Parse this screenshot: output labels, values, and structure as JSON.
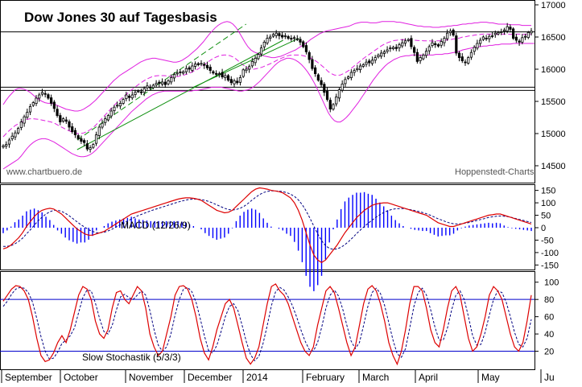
{
  "chart_data": [
    {
      "type": "candlestick",
      "title": "Dow Jones 30 auf Tagesbasis",
      "watermark_left": "www.chartbuero.de",
      "watermark_right": "Hoppenstedt-Charts",
      "ylim": [
        14250,
        17050
      ],
      "yticks": [
        "14500",
        "15000",
        "15500",
        "16000",
        "16500",
        "17000"
      ],
      "close_series": [
        14810,
        14830,
        14900,
        14960,
        15010,
        15080,
        15180,
        15260,
        15330,
        15420,
        15480,
        15550,
        15600,
        15640,
        15610,
        15550,
        15470,
        15390,
        15280,
        15180,
        15230,
        15190,
        15100,
        15030,
        14980,
        14920,
        14880,
        14860,
        14760,
        14780,
        14830,
        14980,
        15100,
        15160,
        15230,
        15280,
        15350,
        15410,
        15440,
        15470,
        15530,
        15600,
        15560,
        15600,
        15640,
        15660,
        15640,
        15700,
        15740,
        15720,
        15750,
        15780,
        15780,
        15800,
        15760,
        15820,
        15870,
        15920,
        15940,
        15950,
        15960,
        16010,
        16000,
        16050,
        16080,
        16070,
        16090,
        16060,
        16020,
        15980,
        15940,
        15920,
        15930,
        15880,
        15900,
        15830,
        15790,
        15820,
        15790,
        15870,
        15990,
        16000,
        16040,
        16120,
        16170,
        16230,
        16330,
        16420,
        16480,
        16500,
        16540,
        16560,
        16520,
        16500,
        16520,
        16480,
        16470,
        16490,
        16470,
        16420,
        16350,
        16270,
        16150,
        16010,
        15930,
        15830,
        15760,
        15640,
        15530,
        15380,
        15450,
        15570,
        15680,
        15770,
        15840,
        15880,
        15950,
        15980,
        16010,
        16050,
        16070,
        16110,
        16100,
        16140,
        16180,
        16220,
        16250,
        16270,
        16300,
        16330,
        16340,
        16320,
        16380,
        16410,
        16440,
        16460,
        16350,
        16260,
        16120,
        16180,
        16220,
        16280,
        16350,
        16410,
        16380,
        16360,
        16430,
        16480,
        16560,
        16590,
        16530,
        16250,
        16180,
        16130,
        16100,
        16180,
        16260,
        16340,
        16400,
        16450,
        16500,
        16480,
        16510,
        16520,
        16560,
        16570,
        16580,
        16610,
        16660,
        16620,
        16480,
        16450,
        16420,
        16490,
        16510,
        16570,
        16590
      ],
      "band_upper": [
        15450,
        15520,
        15580,
        15630,
        15680,
        15700,
        15700,
        15690,
        15670,
        15640,
        15600,
        15560,
        15530,
        15500,
        15480,
        15470,
        15470,
        15460,
        15440,
        15420,
        15400,
        15380,
        15370,
        15360,
        15350,
        15350,
        15360,
        15380,
        15410,
        15440,
        15480,
        15520,
        15570,
        15620,
        15670,
        15720,
        15770,
        15820,
        15860,
        15900,
        15930,
        15960,
        15990,
        16020,
        16050,
        16080,
        16110,
        16130,
        16150,
        16160,
        16170,
        16170,
        16160,
        16150,
        16140,
        16130,
        16120,
        16110,
        16110,
        16120,
        16140,
        16170,
        16200,
        16240,
        16280,
        16320,
        16370,
        16420,
        16480,
        16540,
        16590,
        16640,
        16680,
        16710,
        16730,
        16740,
        16730,
        16700,
        16650,
        16580,
        16500,
        16420,
        16350,
        16300,
        16270,
        16250,
        16230,
        16210,
        16200,
        16190,
        16180,
        16180,
        16190,
        16200,
        16220,
        16240,
        16260,
        16280,
        16300,
        16330,
        16360,
        16390,
        16420,
        16460,
        16490,
        16520,
        16550,
        16570,
        16590,
        16600,
        16610,
        16620,
        16630,
        16640,
        16650,
        16660,
        16670,
        16690,
        16710,
        16720,
        16730,
        16730,
        16730,
        16720,
        16720,
        16720,
        16730,
        16740,
        16740,
        16740,
        16740,
        16740,
        16730,
        16730,
        16720,
        16710,
        16700,
        16690,
        16680,
        16670,
        16670,
        16660,
        16660,
        16660,
        16650,
        16650,
        16650,
        16660,
        16660,
        16670,
        16670,
        16680,
        16680,
        16690,
        16700,
        16700,
        16710,
        16710,
        16720,
        16720,
        16730,
        16730,
        16730,
        16720,
        16720,
        16710,
        16700,
        16700,
        16700,
        16700,
        16690,
        16690,
        16690,
        16690,
        16680,
        16680,
        16680,
        16680
      ],
      "band_lower": [
        14450,
        14480,
        14510,
        14540,
        14570,
        14600,
        14650,
        14710,
        14770,
        14820,
        14860,
        14890,
        14910,
        14920,
        14920,
        14910,
        14890,
        14870,
        14840,
        14810,
        14780,
        14750,
        14720,
        14690,
        14670,
        14650,
        14640,
        14640,
        14650,
        14670,
        14700,
        14740,
        14790,
        14840,
        14890,
        14940,
        14990,
        15040,
        15090,
        15140,
        15190,
        15240,
        15290,
        15340,
        15380,
        15420,
        15460,
        15500,
        15540,
        15570,
        15600,
        15620,
        15640,
        15650,
        15660,
        15660,
        15660,
        15660,
        15660,
        15660,
        15660,
        15660,
        15660,
        15660,
        15670,
        15670,
        15680,
        15690,
        15700,
        15710,
        15720,
        15720,
        15720,
        15720,
        15710,
        15700,
        15690,
        15680,
        15670,
        15660,
        15660,
        15670,
        15680,
        15700,
        15730,
        15770,
        15810,
        15860,
        15910,
        15960,
        16010,
        16060,
        16100,
        16130,
        16150,
        16170,
        16170,
        16160,
        16140,
        16110,
        16070,
        16020,
        15960,
        15890,
        15810,
        15720,
        15620,
        15520,
        15420,
        15320,
        15250,
        15200,
        15180,
        15180,
        15210,
        15250,
        15300,
        15360,
        15420,
        15480,
        15550,
        15620,
        15690,
        15760,
        15830,
        15890,
        15950,
        16000,
        16050,
        16090,
        16120,
        16150,
        16170,
        16190,
        16200,
        16210,
        16210,
        16220,
        16220,
        16220,
        16220,
        16220,
        16220,
        16220,
        16220,
        16230,
        16230,
        16230,
        16240,
        16240,
        16250,
        16260,
        16270,
        16280,
        16300,
        16310,
        16320,
        16330,
        16340,
        16350,
        16350,
        16360,
        16360,
        16370,
        16370,
        16380,
        16380,
        16390,
        16390,
        16390,
        16390,
        16400,
        16400,
        16400,
        16400,
        16400,
        16400,
        16400,
        16400
      ],
      "horizontal_lines": [
        16580,
        15720,
        15670
      ],
      "trendlines": [
        {
          "color": "#109010",
          "dash": true,
          "from": [
            0,
            14760
          ],
          "to": [
            100,
            16720
          ]
        },
        {
          "color": "#109010",
          "dash": false,
          "from": [
            0,
            14700
          ],
          "to": [
            100,
            16350
          ]
        },
        {
          "color": "#109010",
          "dash": false,
          "from": [
            0,
            15770
          ],
          "to": [
            100,
            16600
          ]
        }
      ]
    },
    {
      "type": "line",
      "label": "MACD (12/26/9)",
      "yticks": [
        "150",
        "100",
        "50",
        "0",
        "-50",
        "-100",
        "-150"
      ],
      "ylim": [
        -165,
        165
      ],
      "macd": [
        -85,
        -80,
        -70,
        -55,
        -40,
        -20,
        5,
        25,
        45,
        60,
        70,
        75,
        78,
        75,
        65,
        55,
        40,
        25,
        10,
        -5,
        -15,
        -25,
        -30,
        -30,
        -25,
        -20,
        -15,
        -5,
        5,
        15,
        25,
        35,
        45,
        55,
        60,
        65,
        70,
        75,
        80,
        85,
        90,
        95,
        100,
        105,
        110,
        115,
        118,
        120,
        120,
        118,
        115,
        110,
        100,
        90,
        80,
        70,
        65,
        60,
        62,
        70,
        85,
        100,
        115,
        130,
        145,
        155,
        160,
        158,
        155,
        150,
        148,
        145,
        140,
        130,
        120,
        100,
        70,
        30,
        -20,
        -70,
        -110,
        -130,
        -140,
        -130,
        -110,
        -90,
        -70,
        -45,
        -20,
        0,
        20,
        40,
        55,
        70,
        80,
        90,
        95,
        98,
        100,
        100,
        95,
        90,
        85,
        80,
        75,
        70,
        65,
        60,
        55,
        50,
        40,
        30,
        20,
        15,
        10,
        5,
        5,
        10,
        15,
        20,
        25,
        30,
        35,
        40,
        45,
        50,
        52,
        55,
        55,
        50,
        45,
        40,
        35,
        30,
        25,
        20,
        15
      ],
      "signal": [
        -75,
        -75,
        -72,
        -65,
        -55,
        -42,
        -25,
        -8,
        10,
        28,
        42,
        55,
        64,
        70,
        70,
        66,
        58,
        48,
        36,
        24,
        12,
        2,
        -8,
        -15,
        -20,
        -20,
        -18,
        -13,
        -6,
        2,
        10,
        18,
        27,
        35,
        43,
        50,
        56,
        62,
        68,
        73,
        78,
        83,
        88,
        93,
        98,
        103,
        107,
        111,
        114,
        115,
        115,
        113,
        110,
        105,
        99,
        92,
        85,
        78,
        73,
        71,
        73,
        78,
        86,
        97,
        110,
        122,
        133,
        141,
        146,
        148,
        148,
        147,
        145,
        141,
        135,
        126,
        112,
        93,
        68,
        38,
        6,
        -25,
        -52,
        -72,
        -83,
        -87,
        -85,
        -79,
        -68,
        -55,
        -40,
        -24,
        -9,
        5,
        18,
        30,
        42,
        52,
        61,
        68,
        73,
        76,
        77,
        77,
        75,
        72,
        69,
        65,
        61,
        56,
        50,
        43,
        36,
        30,
        24,
        19,
        16,
        15,
        16,
        18,
        21,
        25,
        29,
        33,
        37,
        41,
        44,
        46,
        47,
        46,
        44,
        41,
        37,
        33,
        29,
        25,
        21
      ]
    },
    {
      "type": "line",
      "label": "Slow Stochastik (5/3/3)",
      "yticks": [
        "100",
        "80",
        "60",
        "40",
        "20"
      ],
      "ylim": [
        0,
        110
      ],
      "reference_lines": [
        80,
        20
      ],
      "k": [
        78,
        85,
        92,
        96,
        95,
        90,
        80,
        60,
        35,
        15,
        8,
        10,
        18,
        30,
        38,
        30,
        45,
        65,
        85,
        95,
        92,
        80,
        55,
        40,
        35,
        45,
        70,
        88,
        90,
        80,
        75,
        85,
        95,
        90,
        70,
        40,
        25,
        15,
        20,
        40,
        60,
        85,
        95,
        96,
        92,
        80,
        60,
        35,
        18,
        10,
        25,
        45,
        60,
        75,
        80,
        70,
        50,
        30,
        12,
        5,
        12,
        25,
        50,
        75,
        95,
        98,
        90,
        85,
        75,
        60,
        45,
        30,
        20,
        15,
        25,
        50,
        70,
        90,
        95,
        88,
        70,
        50,
        30,
        15,
        25,
        50,
        75,
        92,
        96,
        90,
        75,
        55,
        30,
        15,
        5,
        20,
        45,
        75,
        95,
        95,
        90,
        70,
        45,
        30,
        25,
        45,
        70,
        90,
        95,
        85,
        60,
        35,
        20,
        25,
        40,
        60,
        85,
        95,
        90,
        80,
        60,
        40,
        25,
        20,
        30,
        55,
        85
      ],
      "d": [
        72,
        78,
        86,
        92,
        94,
        93,
        88,
        77,
        58,
        37,
        20,
        11,
        12,
        19,
        29,
        33,
        38,
        47,
        65,
        82,
        91,
        90,
        76,
        58,
        43,
        40,
        50,
        68,
        83,
        86,
        82,
        80,
        85,
        90,
        85,
        67,
        45,
        27,
        20,
        25,
        40,
        62,
        80,
        92,
        94,
        89,
        77,
        58,
        38,
        21,
        18,
        27,
        43,
        60,
        72,
        75,
        67,
        50,
        31,
        16,
        9,
        14,
        29,
        50,
        73,
        89,
        94,
        91,
        83,
        73,
        60,
        45,
        32,
        22,
        20,
        30,
        48,
        70,
        85,
        91,
        84,
        69,
        50,
        32,
        23,
        30,
        50,
        72,
        88,
        93,
        87,
        73,
        53,
        33,
        17,
        13,
        23,
        47,
        72,
        88,
        93,
        85,
        68,
        48,
        33,
        33,
        47,
        68,
        85,
        90,
        80,
        60,
        38,
        27,
        28,
        42,
        62,
        80,
        90,
        88,
        77,
        60,
        42,
        28,
        25,
        35,
        57
      ]
    }
  ],
  "x_axis": {
    "month_labels": [
      "September",
      "October",
      "November",
      "December",
      "2014",
      "February",
      "March",
      "April",
      "May",
      "Ju"
    ]
  },
  "colors": {
    "band": "#e020e0",
    "trend": "#109010",
    "macd": "#dd0000",
    "signal": "#000080",
    "histogram": "#0000ff",
    "grid": "#000000"
  }
}
